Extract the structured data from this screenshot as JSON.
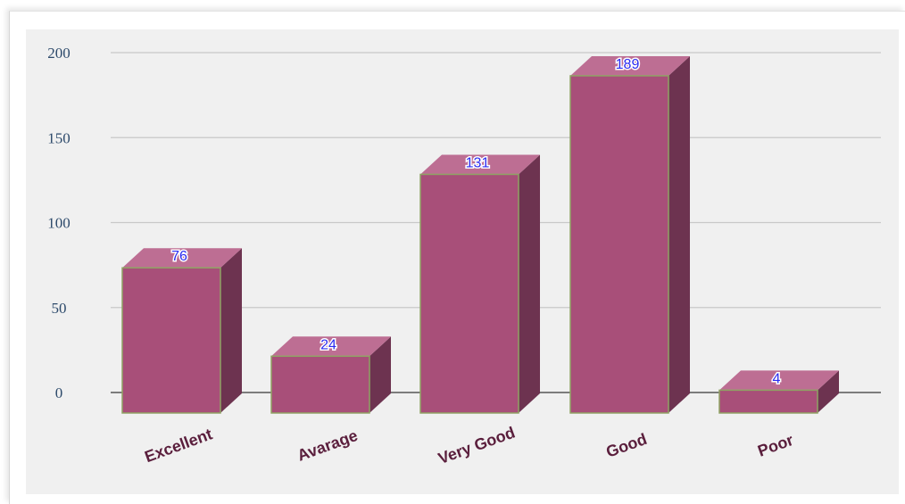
{
  "chart_data": {
    "type": "bar",
    "style": "3d-column",
    "categories": [
      "Excellent",
      "Avarage",
      "Very Good",
      "Good",
      "Poor"
    ],
    "values": [
      76,
      24,
      131,
      189,
      4
    ],
    "data_labels": [
      "76",
      "24",
      "131",
      "189",
      "4"
    ],
    "y_ticks": [
      "0",
      "50",
      "100",
      "150",
      "200"
    ],
    "ylim": [
      0,
      200
    ],
    "title": "",
    "xlabel": "",
    "ylabel": "",
    "grid": true,
    "legend": "none",
    "colors": {
      "bar_front": "#a84f79",
      "bar_top": "#bd6e93",
      "bar_side": "#6d3350",
      "bar_edge": "#8fa364",
      "value_label": "#2b2bf0",
      "category_label": "#5a1e3c",
      "tick_label": "#2d4a6b",
      "plot_background": "#f0f0f0",
      "gridline": "#c8c8c8"
    }
  }
}
